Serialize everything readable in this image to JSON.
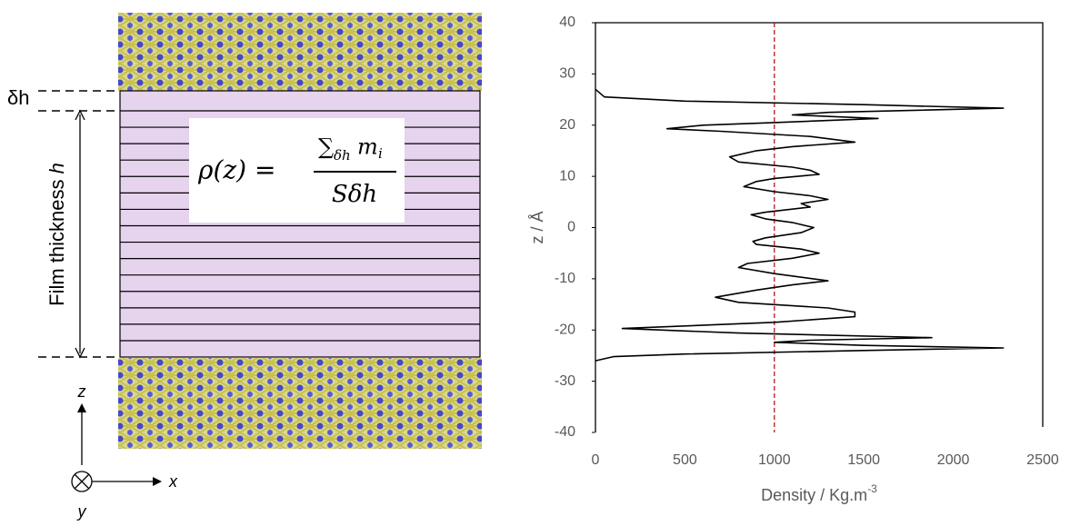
{
  "diagram": {
    "delta_label": "δh",
    "thickness_label": "Film thickness ",
    "thickness_symbol": "h",
    "formula": {
      "lhs": "ρ(z) =",
      "sum": "∑",
      "sum_sub": "δh",
      "mass": "m",
      "mass_sub": "i",
      "denominator": "Sδh"
    },
    "axis_z": "z",
    "axis_x": "x",
    "axis_y": "y"
  },
  "chart_data": {
    "type": "line",
    "x_label": "Density / Kg.m",
    "x_label_superscript": "-3",
    "y_label": "z / Å",
    "xlim": [
      0,
      2500
    ],
    "xticks": [
      0,
      500,
      1000,
      1500,
      2000,
      2500
    ],
    "ylim": [
      -40,
      40
    ],
    "yticks": [
      -40,
      -30,
      -20,
      -10,
      0,
      10,
      20,
      30,
      40
    ],
    "reference_line": {
      "x": 1000,
      "color": "#c00000"
    },
    "series": [
      {
        "color": "#000000",
        "x": [
          0,
          50,
          500,
          1500,
          2280,
          1300,
          1100,
          1580,
          1000,
          600,
          400,
          700,
          1200,
          1450,
          1100,
          900,
          750,
          800,
          1100,
          1200,
          1250,
          1000,
          900,
          830,
          1000,
          1200,
          1300,
          1150,
          1200,
          950,
          870,
          950,
          1100,
          1220,
          1150,
          950,
          880,
          900,
          1150,
          1250,
          1100,
          850,
          800,
          1000,
          1300,
          1100,
          900,
          670,
          800,
          1300,
          1450,
          1450,
          1000,
          150,
          800,
          1880,
          1200,
          1000,
          1500,
          2280,
          1500,
          500,
          100,
          0
        ],
        "y": [
          27,
          25.5,
          24.7,
          24,
          23.3,
          22.5,
          22,
          21.3,
          20.5,
          20,
          19.3,
          18.8,
          17.8,
          16.7,
          15.8,
          15,
          13.8,
          12.8,
          11.8,
          11.2,
          10.4,
          9.6,
          9,
          8,
          7,
          6.2,
          5.5,
          4.7,
          4,
          3,
          2.5,
          1.7,
          1,
          0,
          -1,
          -2,
          -2.7,
          -3.3,
          -4.2,
          -5,
          -6,
          -7,
          -7.8,
          -9,
          -10.4,
          -11.2,
          -12.2,
          -13.6,
          -14.6,
          -15.7,
          -16.5,
          -17.4,
          -18.5,
          -19.7,
          -20.6,
          -21.5,
          -22,
          -22.4,
          -23,
          -23.5,
          -24,
          -24.7,
          -25.2,
          -26
        ]
      }
    ]
  }
}
